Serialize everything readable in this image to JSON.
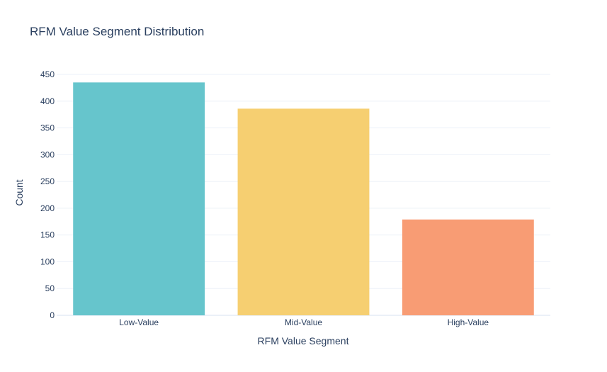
{
  "chart_data": {
    "type": "bar",
    "title": "RFM Value Segment Distribution",
    "xlabel": "RFM Value Segment",
    "ylabel": "Count",
    "categories": [
      "Low-Value",
      "Mid-Value",
      "High-Value"
    ],
    "values": [
      435,
      386,
      179
    ],
    "colors": [
      "#66c5cc",
      "#f6cf71",
      "#f89c74"
    ],
    "ylim": [
      0,
      450
    ],
    "yticks": [
      0,
      50,
      100,
      150,
      200,
      250,
      300,
      350,
      400,
      450
    ],
    "grid": true,
    "legend": "none"
  }
}
